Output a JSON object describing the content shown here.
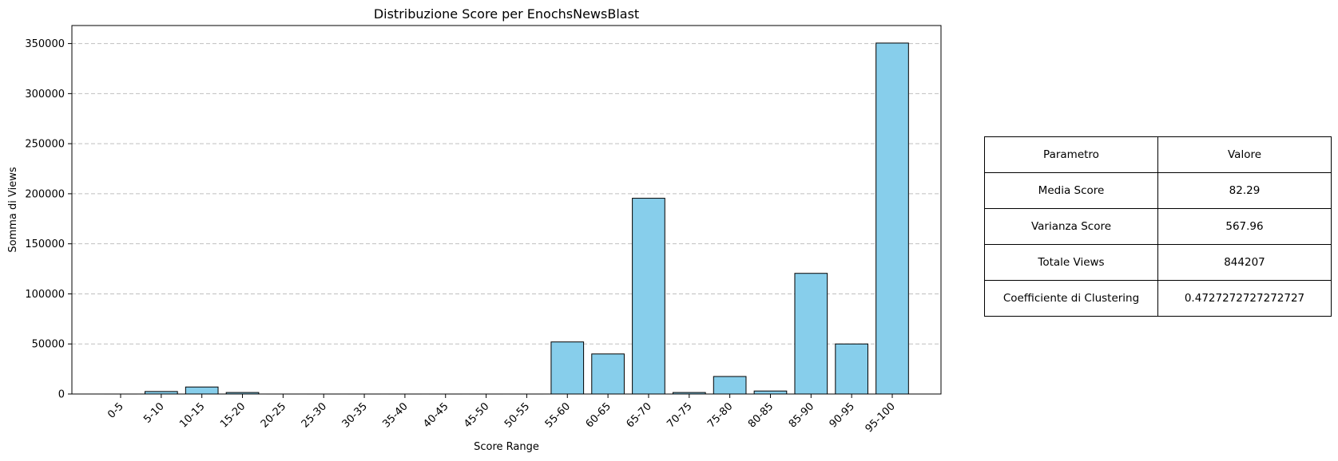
{
  "chart_data": {
    "type": "bar",
    "title": "Distribuzione Score per EnochsNewsBlast",
    "xlabel": "Score Range",
    "ylabel": "Somma di Views",
    "categories": [
      "0-5",
      "5-10",
      "10-15",
      "15-20",
      "20-25",
      "25-30",
      "30-35",
      "35-40",
      "40-45",
      "45-50",
      "50-55",
      "55-60",
      "60-65",
      "65-70",
      "70-75",
      "75-80",
      "80-85",
      "85-90",
      "90-95",
      "95-100"
    ],
    "values": [
      0,
      2500,
      7000,
      1500,
      0,
      0,
      0,
      0,
      0,
      0,
      0,
      52000,
      40000,
      195500,
      1500,
      17500,
      3000,
      120500,
      50000,
      350500
    ],
    "ylim": [
      0,
      368000
    ],
    "yticks": [
      0,
      50000,
      100000,
      150000,
      200000,
      250000,
      300000,
      350000
    ],
    "ytick_labels": [
      "0",
      "50000",
      "100000",
      "150000",
      "200000",
      "250000",
      "300000",
      "350000"
    ],
    "bar_color": "#87ceeb",
    "edge_color": "#000000",
    "grid": "y-dashed"
  },
  "stats_table": {
    "header": [
      "Parametro",
      "Valore"
    ],
    "rows": [
      [
        "Media Score",
        "82.29"
      ],
      [
        "Varianza Score",
        "567.96"
      ],
      [
        "Totale Views",
        "844207"
      ],
      [
        "Coefficiente di Clustering",
        "0.4727272727272727"
      ]
    ]
  }
}
